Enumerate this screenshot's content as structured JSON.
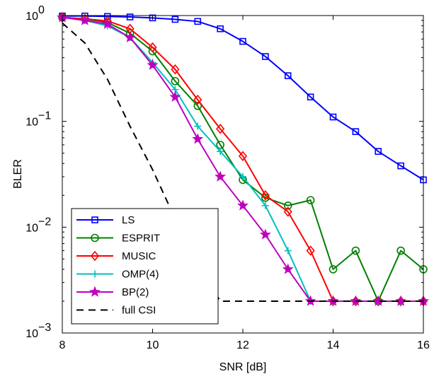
{
  "chart_data": {
    "type": "line",
    "xlabel": "SNR [dB]",
    "ylabel": "BLER",
    "xlim": [
      8,
      16
    ],
    "ylim": [
      0.001,
      1
    ],
    "yscale": "log",
    "grid": false,
    "legend_position": "bottom-left",
    "x_ticks": [
      8,
      10,
      12,
      14,
      16
    ],
    "x_tick_labels": [
      "8",
      "10",
      "12",
      "14",
      "16"
    ],
    "y_ticks": [
      0.001,
      0.01,
      0.1,
      1
    ],
    "y_tick_labels": [
      {
        "base": "10",
        "exp": "−3"
      },
      {
        "base": "10",
        "exp": "−2"
      },
      {
        "base": "10",
        "exp": "−1"
      },
      {
        "base": "10",
        "exp": "0"
      }
    ],
    "series": [
      {
        "name": "LS",
        "color": "#0000ff",
        "marker": "square",
        "dash": "",
        "x": [
          8,
          8.5,
          9,
          9.5,
          10,
          10.5,
          11,
          11.5,
          12,
          12.5,
          13,
          13.5,
          14,
          14.5,
          15,
          15.5,
          16
        ],
        "y": [
          0.99,
          0.99,
          0.98,
          0.97,
          0.95,
          0.92,
          0.88,
          0.75,
          0.57,
          0.41,
          0.27,
          0.17,
          0.11,
          0.08,
          0.052,
          0.038,
          0.028
        ]
      },
      {
        "name": "ESPRIT",
        "color": "#008000",
        "marker": "circle",
        "dash": "",
        "x": [
          8,
          8.5,
          9,
          9.5,
          10,
          10.5,
          11,
          11.5,
          12,
          12.5,
          13,
          13.5,
          14,
          14.5,
          15,
          15.5,
          16
        ],
        "y": [
          0.96,
          0.93,
          0.86,
          0.68,
          0.46,
          0.24,
          0.14,
          0.06,
          0.028,
          0.019,
          0.016,
          0.018,
          0.004,
          0.006,
          0.002,
          0.006,
          0.004
        ]
      },
      {
        "name": "MUSIC",
        "color": "#ff0000",
        "marker": "diamond",
        "dash": "",
        "x": [
          8,
          8.5,
          9,
          9.5,
          10,
          10.5,
          11,
          11.5,
          12,
          12.5,
          13,
          13.5,
          14,
          14.5,
          15,
          15.5,
          16
        ],
        "y": [
          0.96,
          0.93,
          0.89,
          0.75,
          0.5,
          0.31,
          0.16,
          0.085,
          0.047,
          0.02,
          0.014,
          0.006,
          0.002,
          0.002,
          0.002,
          0.002,
          0.002
        ]
      },
      {
        "name": "OMP(4)",
        "color": "#00bfbf",
        "marker": "plus",
        "dash": "",
        "x": [
          8,
          8.5,
          9,
          9.5,
          10,
          10.5,
          11,
          11.5,
          12,
          12.5,
          13,
          13.5,
          14,
          14.5,
          15,
          15.5,
          16
        ],
        "y": [
          0.96,
          0.9,
          0.8,
          0.62,
          0.36,
          0.2,
          0.09,
          0.052,
          0.03,
          0.016,
          0.006,
          0.002,
          0.002,
          0.002,
          0.002,
          0.002,
          0.002
        ]
      },
      {
        "name": "BP(2)",
        "color": "#bf00bf",
        "marker": "star",
        "dash": "",
        "x": [
          8,
          8.5,
          9,
          9.5,
          10,
          10.5,
          11,
          11.5,
          12,
          12.5,
          13,
          13.5,
          14,
          14.5,
          15,
          15.5,
          16
        ],
        "y": [
          0.96,
          0.9,
          0.83,
          0.62,
          0.34,
          0.17,
          0.068,
          0.03,
          0.016,
          0.0085,
          0.004,
          0.002,
          0.002,
          0.002,
          0.002,
          0.002,
          0.002
        ]
      },
      {
        "name": "full CSI",
        "color": "#000000",
        "marker": "none",
        "dash": "10,7",
        "x": [
          8,
          8.5,
          9,
          9.5,
          10,
          10.5,
          11,
          11.5,
          12,
          12.5,
          13,
          13.5,
          14,
          14.5,
          15,
          15.5,
          16
        ],
        "y": [
          0.85,
          0.55,
          0.25,
          0.09,
          0.035,
          0.012,
          0.0045,
          0.002,
          0.002,
          0.002,
          0.002,
          0.002,
          0.002,
          0.002,
          0.002,
          0.002,
          0.002
        ]
      }
    ]
  }
}
